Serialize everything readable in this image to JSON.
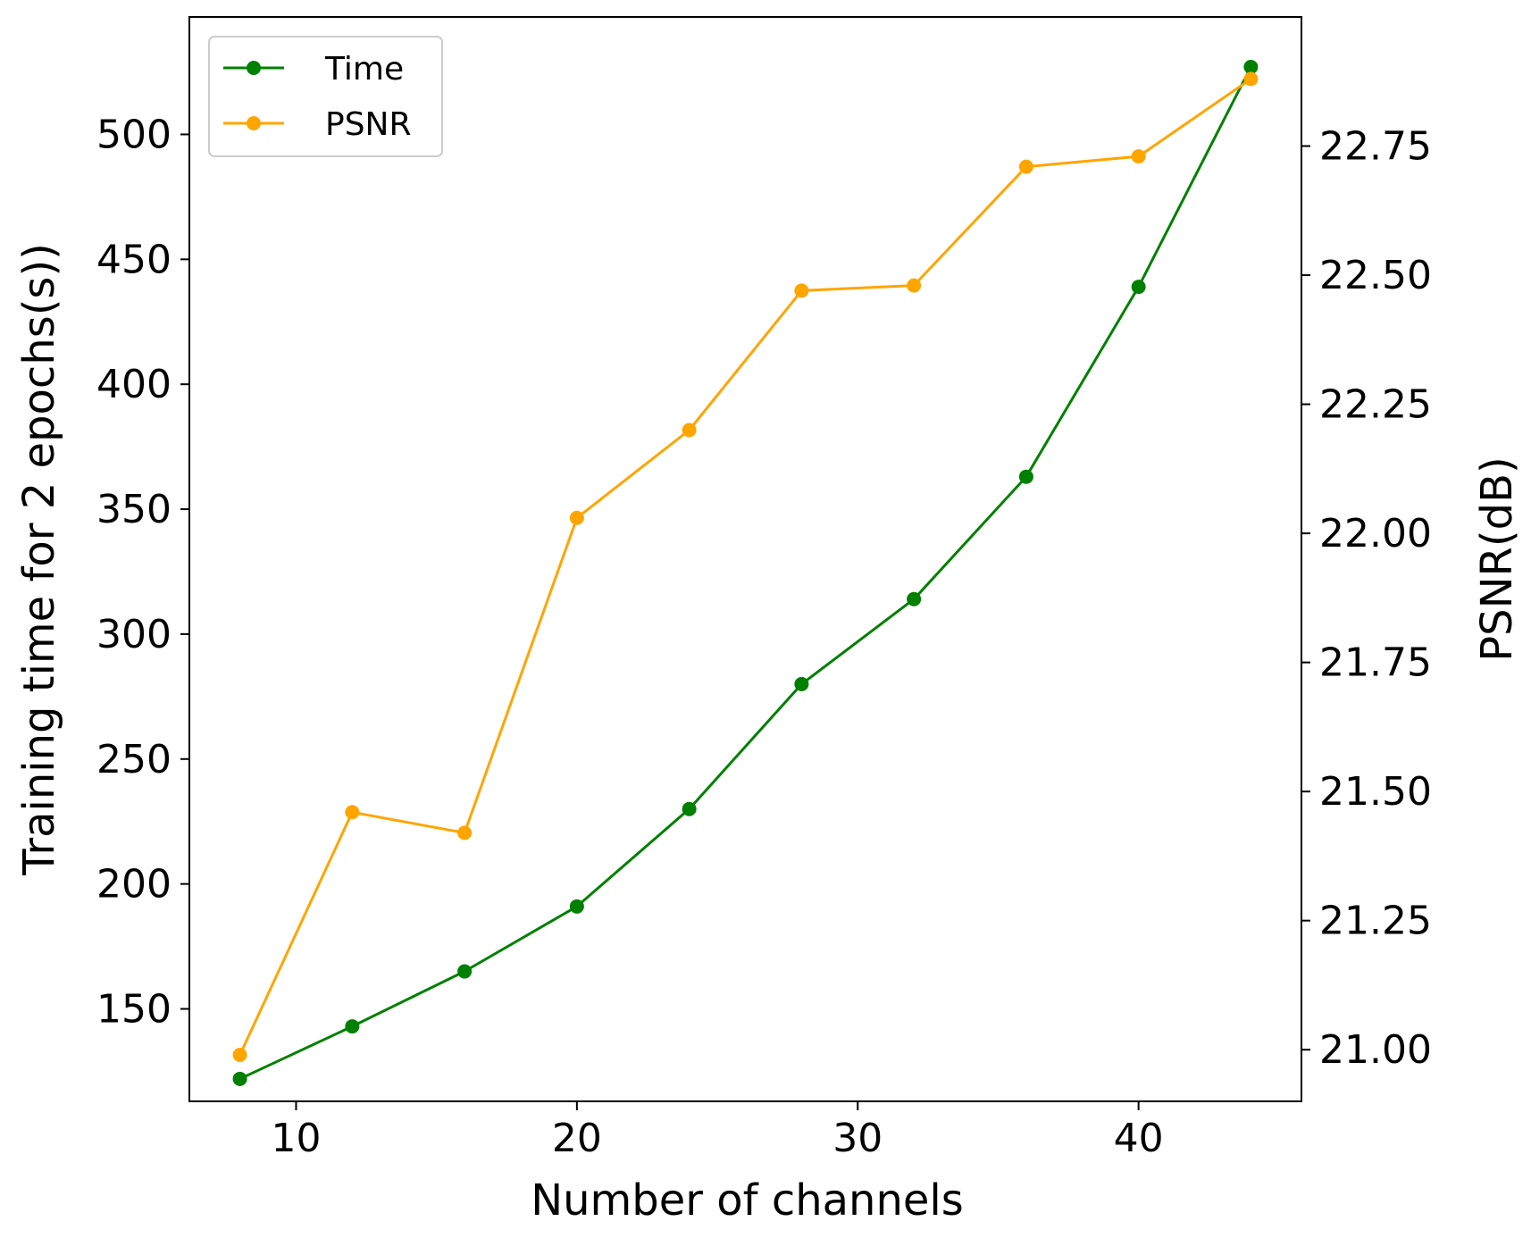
{
  "chart_data": {
    "type": "line",
    "x": [
      8,
      12,
      16,
      20,
      24,
      28,
      32,
      36,
      40,
      44
    ],
    "xlabel": "Number of channels",
    "ylabel_left": "Training time for 2 epochs(s))",
    "ylabel_right": "PSNR(dB)",
    "xlim": [
      6.2,
      45.8
    ],
    "ylim_left": [
      113,
      547
    ],
    "ylim_right": [
      20.9,
      23.0
    ],
    "xticks": [
      10,
      20,
      30,
      40
    ],
    "xtick_labels": [
      "10",
      "20",
      "30",
      "40"
    ],
    "yticks_left": [
      150,
      200,
      250,
      300,
      350,
      400,
      450,
      500
    ],
    "ytick_labels_left": [
      "150",
      "200",
      "250",
      "300",
      "350",
      "400",
      "450",
      "500"
    ],
    "yticks_right": [
      21.0,
      21.25,
      21.5,
      21.75,
      22.0,
      22.25,
      22.5,
      22.75
    ],
    "ytick_labels_right": [
      "21.00",
      "21.25",
      "21.50",
      "21.75",
      "22.00",
      "22.25",
      "22.50",
      "22.75"
    ],
    "series": [
      {
        "name": "Time",
        "axis": "left",
        "color": "#008000",
        "values": [
          122,
          143,
          165,
          191,
          230,
          280,
          314,
          363,
          439,
          527
        ]
      },
      {
        "name": "PSNR",
        "axis": "right",
        "color": "#FFA500",
        "values": [
          20.99,
          21.46,
          21.42,
          22.03,
          22.2,
          22.47,
          22.48,
          22.71,
          22.73,
          22.88
        ]
      }
    ],
    "legend": {
      "position": "top-left"
    },
    "grid": false
  }
}
